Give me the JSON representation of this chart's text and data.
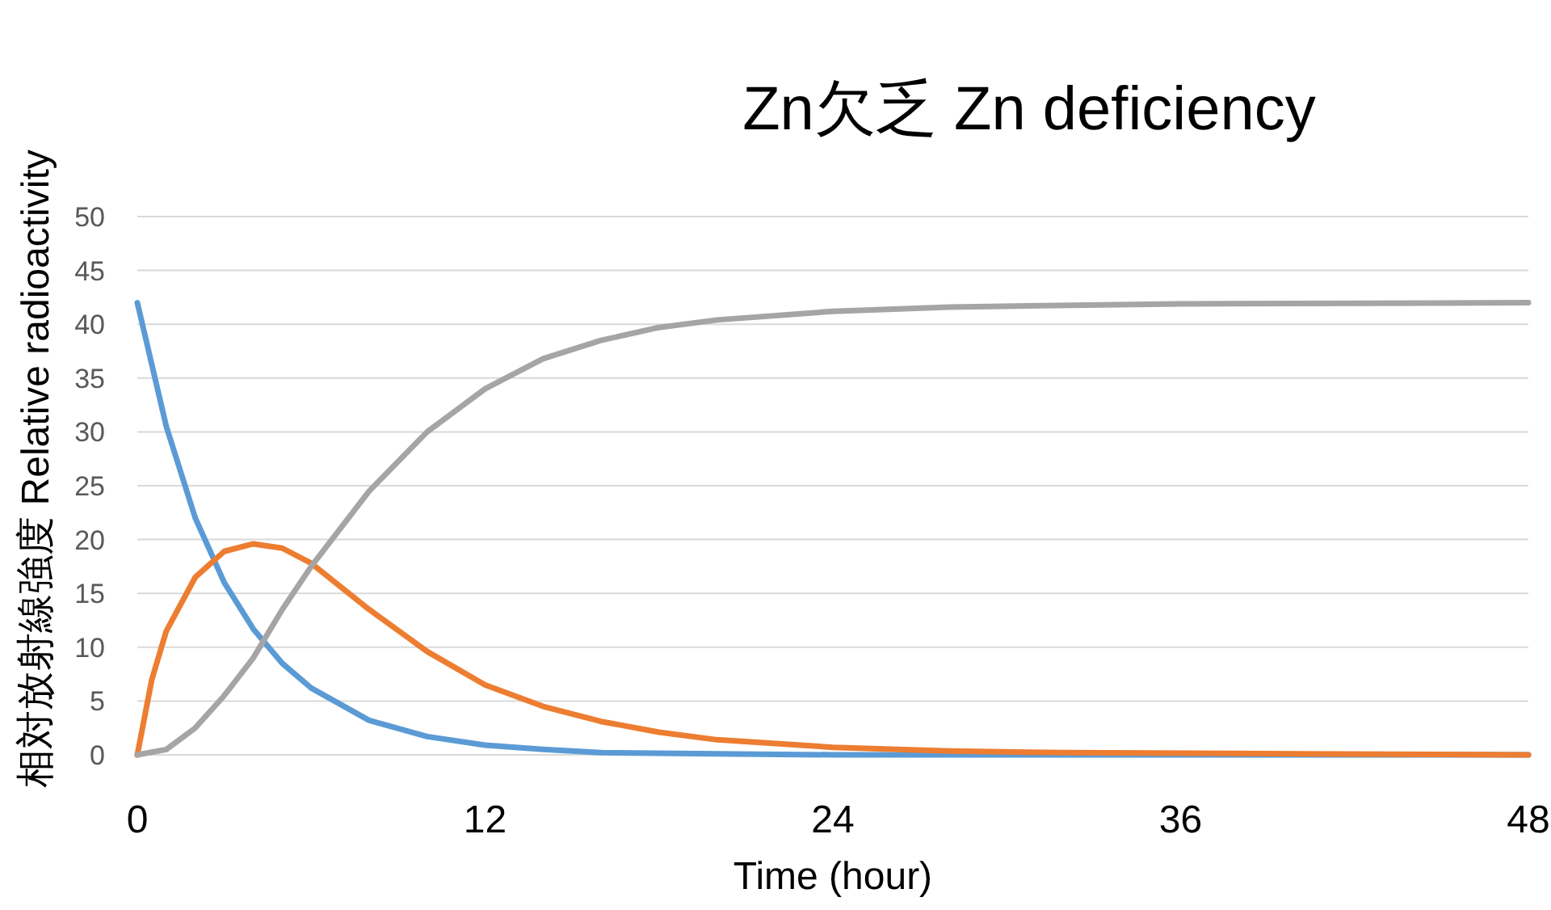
{
  "chart_data": {
    "type": "line",
    "title": "Zn欠乏 Zn deficiency",
    "xlabel": "Time (hour)",
    "ylabel": "相対放射線強度 Relative radioactivity",
    "xlim": [
      0,
      48
    ],
    "xticks": [
      0,
      12,
      24,
      36,
      48
    ],
    "ylim": [
      0,
      50
    ],
    "yticks": [
      0,
      5,
      10,
      15,
      20,
      25,
      30,
      35,
      40,
      45,
      50
    ],
    "grid": "y",
    "marker": "none",
    "line_style": "solid",
    "series": [
      {
        "color": "#5b9bd5",
        "x": [
          0,
          1,
          2,
          3,
          4,
          5,
          6,
          8,
          10,
          12,
          14,
          16,
          20,
          24,
          48
        ],
        "values": [
          42,
          30.5,
          22,
          16,
          11.7,
          8.5,
          6.2,
          3.2,
          1.7,
          0.9,
          0.5,
          0.2,
          0.1,
          0,
          0
        ]
      },
      {
        "color": "#ed7d31",
        "x": [
          0,
          0.5,
          1,
          2,
          3,
          4,
          5,
          6,
          8,
          10,
          12,
          14,
          16,
          18,
          20,
          24,
          28,
          32,
          40,
          48
        ],
        "values": [
          0,
          7,
          11.5,
          16.5,
          18.9,
          19.6,
          19.2,
          17.8,
          13.5,
          9.6,
          6.5,
          4.5,
          3.1,
          2.1,
          1.4,
          0.7,
          0.35,
          0.2,
          0.1,
          0
        ]
      },
      {
        "color": "#a5a5a5",
        "x": [
          0,
          1,
          2,
          3,
          4,
          5,
          6,
          8,
          10,
          12,
          14,
          16,
          18,
          20,
          24,
          28,
          36,
          48
        ],
        "values": [
          0,
          0.5,
          2.5,
          5.5,
          9,
          13.5,
          17.5,
          24.5,
          30,
          34,
          36.8,
          38.5,
          39.7,
          40.4,
          41.2,
          41.6,
          41.9,
          42
        ]
      }
    ]
  }
}
